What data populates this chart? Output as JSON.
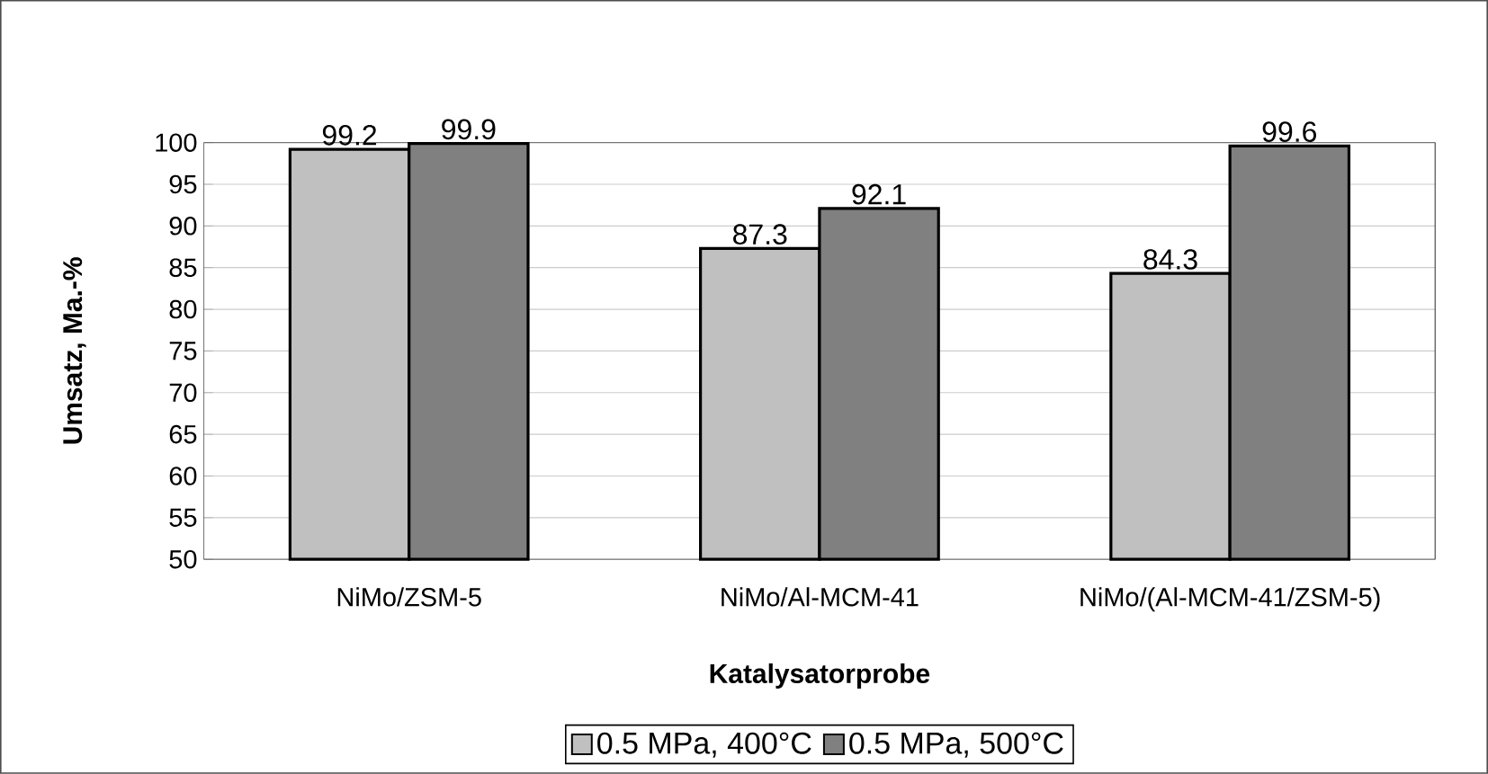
{
  "chart_data": {
    "type": "bar",
    "xlabel": "Katalysatorprobe",
    "ylabel": "Umsatz, Ma.-%",
    "categories": [
      "NiMo/ZSM-5",
      "NiMo/Al-MCM-41",
      "NiMo/(Al-MCM-41/ZSM-5)"
    ],
    "series": [
      {
        "name": "0.5 MPa, 400°C",
        "color": "#c0c0c0",
        "values": [
          99.2,
          87.3,
          84.3
        ]
      },
      {
        "name": "0.5 MPa, 500°C",
        "color": "#808080",
        "values": [
          99.9,
          92.1,
          99.6
        ]
      }
    ],
    "ylim": [
      50,
      100
    ],
    "yticks": [
      50,
      55,
      60,
      65,
      70,
      75,
      80,
      85,
      90,
      95,
      100
    ],
    "grid": "y",
    "legend": "bottom",
    "data_labels": true
  }
}
